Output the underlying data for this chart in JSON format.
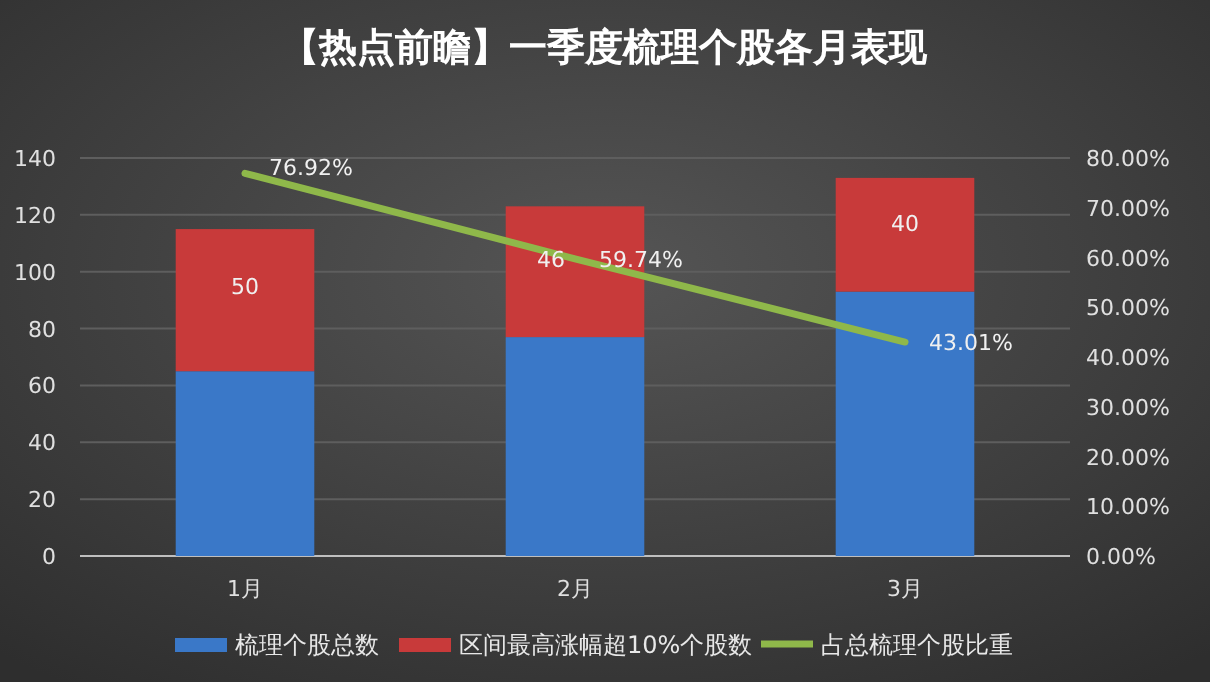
{
  "chart_data": {
    "type": "bar",
    "title": "【热点前瞻】一季度梳理个股各月表现",
    "categories": [
      "1月",
      "2月",
      "3月"
    ],
    "stacked": true,
    "series": [
      {
        "name": "梳理个股总数",
        "color": "#3a78c8",
        "values": [
          65,
          77,
          93
        ]
      },
      {
        "name": "区间最高涨幅超10%个股数",
        "color": "#c83a3a",
        "values": [
          50,
          46,
          40
        ],
        "value_labels": [
          "50",
          "46",
          "40"
        ]
      },
      {
        "name": "占总梳理个股比重",
        "type": "line",
        "axis": "y2",
        "color": "#8fb84a",
        "values": [
          76.92,
          59.74,
          43.01
        ],
        "value_labels": [
          "76.92%",
          "59.74%",
          "43.01%"
        ]
      }
    ],
    "ylim": [
      0,
      140
    ],
    "yticks": [
      0,
      20,
      40,
      60,
      80,
      100,
      120,
      140
    ],
    "y2lim": [
      0,
      80
    ],
    "y2ticks": [
      {
        "value": 0,
        "label": "0.00%"
      },
      {
        "value": 10,
        "label": "10.00%"
      },
      {
        "value": 20,
        "label": "20.00%"
      },
      {
        "value": 30,
        "label": "30.00%"
      },
      {
        "value": 40,
        "label": "40.00%"
      },
      {
        "value": 50,
        "label": "50.00%"
      },
      {
        "value": 60,
        "label": "60.00%"
      },
      {
        "value": 70,
        "label": "70.00%"
      },
      {
        "value": 80,
        "label": "80.00%"
      }
    ],
    "grid": "y",
    "legend": "bottom"
  }
}
